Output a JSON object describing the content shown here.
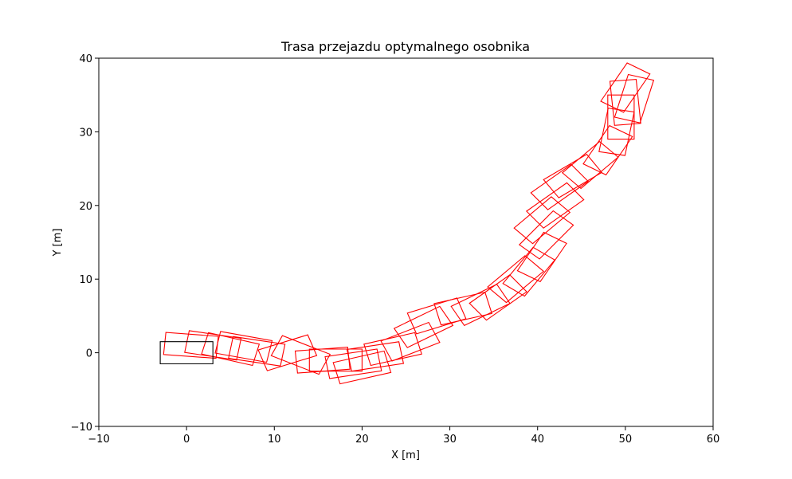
{
  "chart_data": {
    "type": "scatter",
    "title": "Trasa przejazdu optymalnego osobnika",
    "xlabel": "X [m]",
    "ylabel": "Y [m]",
    "xlim": [
      -10,
      60
    ],
    "ylim": [
      -10,
      40
    ],
    "xticks": [
      -10,
      0,
      10,
      20,
      30,
      40,
      50,
      60
    ],
    "yticks": [
      -10,
      0,
      10,
      20,
      30,
      40
    ],
    "xtick_labels": [
      "−10",
      "0",
      "10",
      "20",
      "30",
      "40",
      "50",
      "60"
    ],
    "ytick_labels": [
      "−10",
      "0",
      "10",
      "20",
      "30",
      "40"
    ],
    "grid": false,
    "vehicle_size_m": {
      "length": 6.0,
      "width": 3.0
    },
    "start_pose": {
      "x": 0.0,
      "y": 0.0,
      "heading_deg": 0,
      "color": "#000000"
    },
    "path_color": "#ff0000",
    "path_poses": [
      {
        "x": 0.5,
        "y": 1.0,
        "heading_deg": -5
      },
      {
        "x": 3.0,
        "y": 1.0,
        "heading_deg": -10
      },
      {
        "x": 5.0,
        "y": 0.5,
        "heading_deg": -15
      },
      {
        "x": 6.5,
        "y": 0.8,
        "heading_deg": -12
      },
      {
        "x": 8.0,
        "y": 0.2,
        "heading_deg": -10
      },
      {
        "x": 11.5,
        "y": 0.0,
        "heading_deg": 20
      },
      {
        "x": 13.0,
        "y": -0.3,
        "heading_deg": -25
      },
      {
        "x": 15.5,
        "y": -1.0,
        "heading_deg": 5
      },
      {
        "x": 17.0,
        "y": -1.0,
        "heading_deg": 0
      },
      {
        "x": 19.0,
        "y": -1.5,
        "heading_deg": 10
      },
      {
        "x": 20.0,
        "y": -2.0,
        "heading_deg": 15
      },
      {
        "x": 21.5,
        "y": -0.5,
        "heading_deg": 10
      },
      {
        "x": 23.5,
        "y": 0.5,
        "heading_deg": 15
      },
      {
        "x": 25.5,
        "y": 1.5,
        "heading_deg": 25
      },
      {
        "x": 27.0,
        "y": 3.5,
        "heading_deg": 30
      },
      {
        "x": 28.5,
        "y": 5.0,
        "heading_deg": 20
      },
      {
        "x": 31.5,
        "y": 6.0,
        "heading_deg": 15
      },
      {
        "x": 33.5,
        "y": 6.5,
        "heading_deg": 30
      },
      {
        "x": 35.5,
        "y": 7.5,
        "heading_deg": 40
      },
      {
        "x": 37.5,
        "y": 10.0,
        "heading_deg": 45
      },
      {
        "x": 39.0,
        "y": 11.0,
        "heading_deg": 55
      },
      {
        "x": 40.5,
        "y": 13.0,
        "heading_deg": 60
      },
      {
        "x": 41.0,
        "y": 16.0,
        "heading_deg": 50
      },
      {
        "x": 40.5,
        "y": 18.0,
        "heading_deg": 45
      },
      {
        "x": 42.0,
        "y": 20.0,
        "heading_deg": 40
      },
      {
        "x": 42.5,
        "y": 22.5,
        "heading_deg": 40
      },
      {
        "x": 44.0,
        "y": 24.0,
        "heading_deg": 35
      },
      {
        "x": 46.0,
        "y": 25.5,
        "heading_deg": 45
      },
      {
        "x": 48.0,
        "y": 27.5,
        "heading_deg": 60
      },
      {
        "x": 49.0,
        "y": 30.0,
        "heading_deg": 80
      },
      {
        "x": 49.5,
        "y": 32.0,
        "heading_deg": 90
      },
      {
        "x": 50.0,
        "y": 34.0,
        "heading_deg": 95
      },
      {
        "x": 51.0,
        "y": 34.5,
        "heading_deg": 75
      },
      {
        "x": 50.0,
        "y": 36.0,
        "heading_deg": 60
      }
    ]
  }
}
